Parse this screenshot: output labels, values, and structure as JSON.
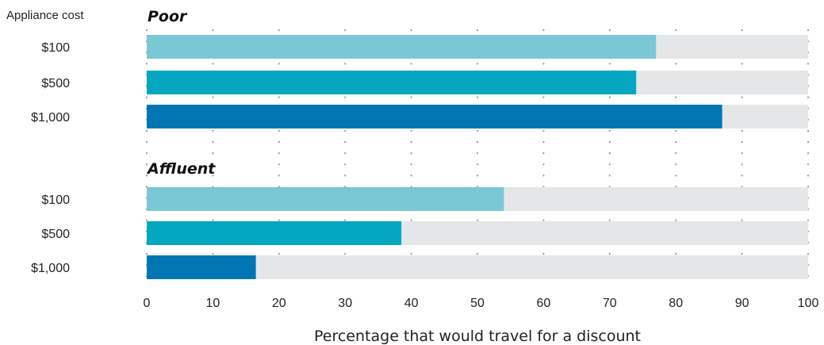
{
  "chart_data": {
    "type": "bar",
    "orientation": "horizontal",
    "y_header": "Appliance cost",
    "xlabel": "Percentage that would travel for a discount",
    "xlim": [
      0,
      100
    ],
    "xticks": [
      "0",
      "10",
      "20",
      "30",
      "40",
      "50",
      "60",
      "70",
      "80",
      "90",
      "100"
    ],
    "grid": "vertical dotted",
    "groups": [
      {
        "title": "Poor",
        "categories": [
          "$100",
          "$500",
          "$1,000"
        ],
        "values": [
          77,
          74,
          87
        ]
      },
      {
        "title": "Affluent",
        "categories": [
          "$100",
          "$500",
          "$1,000"
        ],
        "values": [
          54,
          38.5,
          16.5
        ]
      }
    ],
    "colors": {
      "$100": "#7ac7d5",
      "$500": "#03a7c0",
      "$1,000": "#0076b4",
      "track": "#e5e6e8",
      "grid": "#9a9a9a"
    }
  }
}
